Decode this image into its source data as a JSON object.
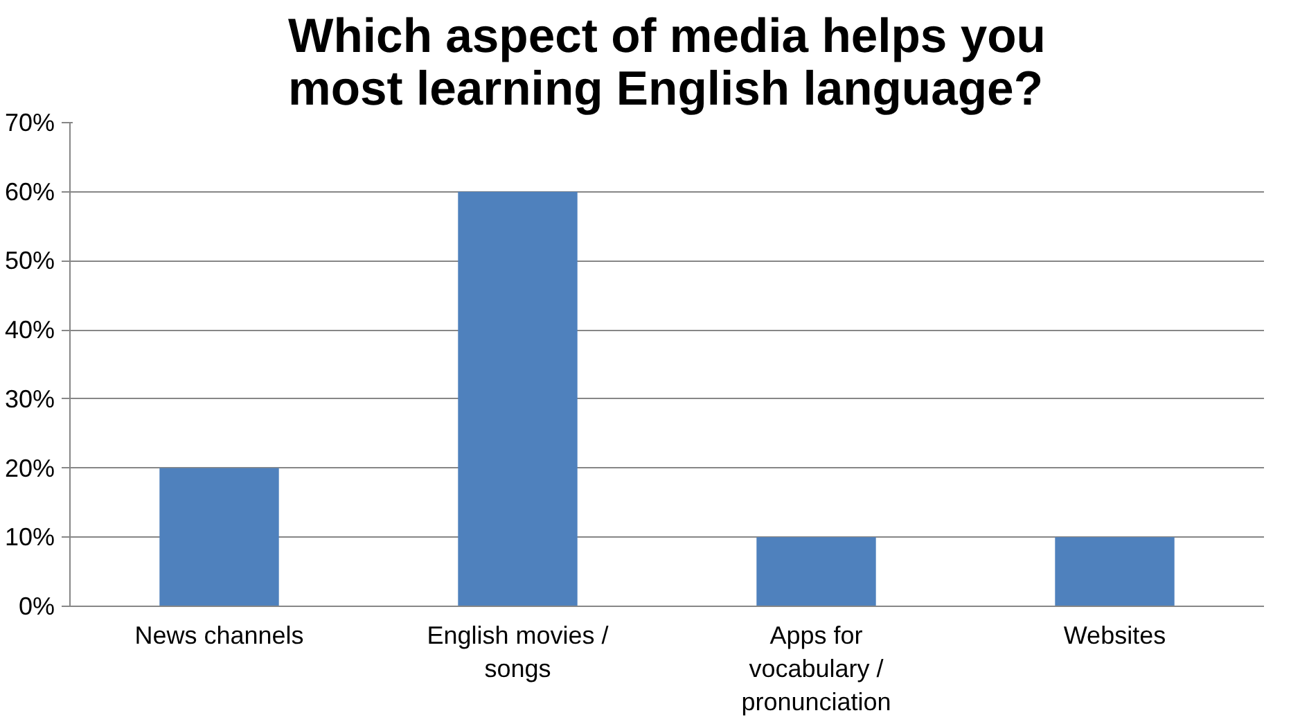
{
  "chart_data": {
    "type": "bar",
    "title": "Which aspect of media helps you most learning English language?",
    "categories": [
      "News channels",
      "English movies / songs",
      "Apps for vocabulary / pronunciation",
      "Websites"
    ],
    "values": [
      20,
      60,
      10,
      10
    ],
    "color": "#4f81bd",
    "ylim": [
      0,
      70
    ],
    "yticks": [
      {
        "value": 0,
        "label": "0%"
      },
      {
        "value": 10,
        "label": "10%"
      },
      {
        "value": 20,
        "label": "20%"
      },
      {
        "value": 30,
        "label": "30%"
      },
      {
        "value": 40,
        "label": "40%"
      },
      {
        "value": 50,
        "label": "50%"
      },
      {
        "value": 60,
        "label": "60%"
      },
      {
        "value": 70,
        "label": "70%"
      }
    ],
    "grid": "y"
  }
}
